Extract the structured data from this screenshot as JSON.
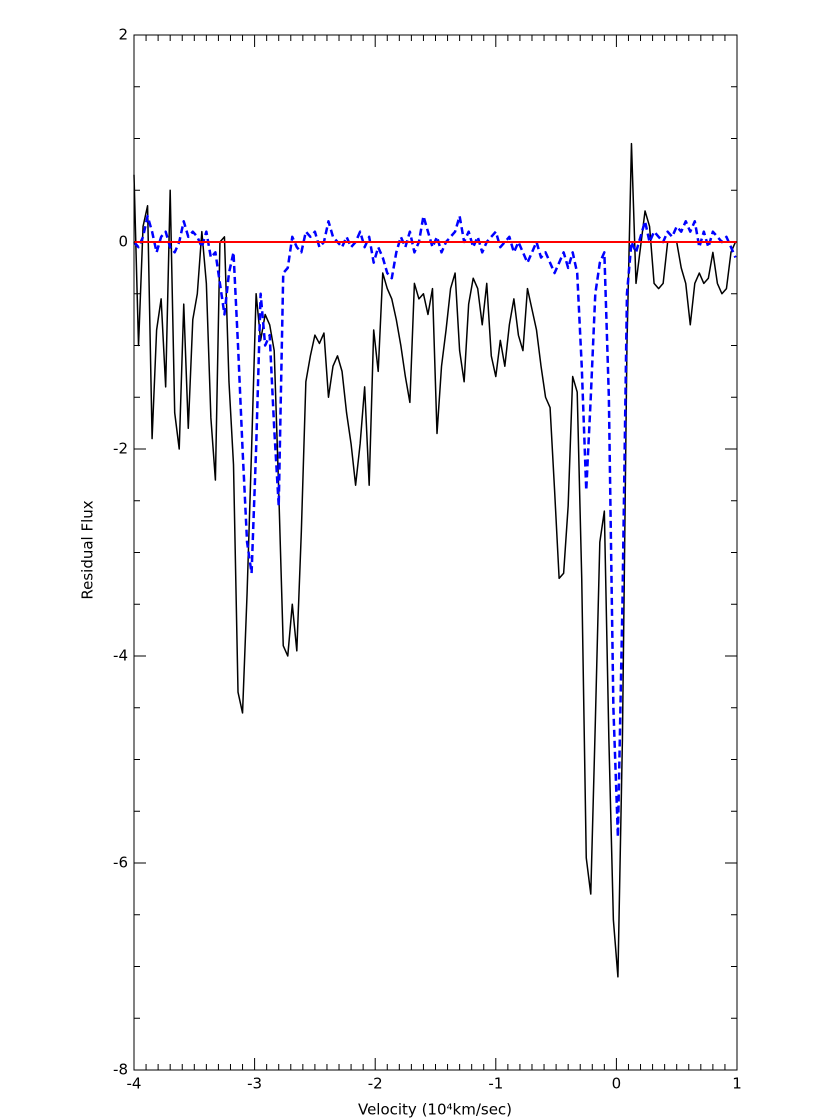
{
  "chart_data": {
    "type": "line",
    "xlabel": "Velocity (10⁴km/sec)",
    "ylabel": "Residual Flux",
    "xlim": [
      -4,
      1
    ],
    "ylim": [
      -8,
      2
    ],
    "xticks": [
      -4,
      -3,
      -2,
      -1,
      0,
      1
    ],
    "yticks": [
      -8,
      -6,
      -4,
      -2,
      0,
      2
    ],
    "x_minor_divisions": 10,
    "y_minor_divisions": 4,
    "series": [
      {
        "color": "#000000",
        "style": "solid",
        "x": [
          -4,
          -3.9625,
          -3.925,
          -3.8875,
          -3.85,
          -3.8125,
          -3.775,
          -3.7375,
          -3.7,
          -3.6625,
          -3.625,
          -3.5875,
          -3.55,
          -3.5125,
          -3.475,
          -3.4375,
          -3.4,
          -3.3625,
          -3.325,
          -3.2875,
          -3.25,
          -3.2125,
          -3.175,
          -3.1375,
          -3.1,
          -3.0625,
          -3.025,
          -2.9875,
          -2.95,
          -2.9125,
          -2.875,
          -2.8375,
          -2.8,
          -2.7625,
          -2.725,
          -2.6875,
          -2.65,
          -2.6125,
          -2.575,
          -2.5375,
          -2.5,
          -2.4625,
          -2.425,
          -2.3875,
          -2.35,
          -2.3125,
          -2.275,
          -2.2375,
          -2.2,
          -2.1625,
          -2.125,
          -2.0875,
          -2.05,
          -2.0125,
          -1.975,
          -1.9375,
          -1.9,
          -1.8625,
          -1.825,
          -1.7875,
          -1.75,
          -1.7125,
          -1.675,
          -1.6375,
          -1.6,
          -1.5625,
          -1.525,
          -1.4875,
          -1.45,
          -1.4125,
          -1.375,
          -1.3375,
          -1.3,
          -1.2625,
          -1.225,
          -1.1875,
          -1.15,
          -1.1125,
          -1.075,
          -1.0375,
          -1,
          -0.9625,
          -0.925,
          -0.8875,
          -0.85,
          -0.8125,
          -0.775,
          -0.7375,
          -0.7,
          -0.6625,
          -0.625,
          -0.5875,
          -0.55,
          -0.5125,
          -0.475,
          -0.4375,
          -0.4,
          -0.3625,
          -0.325,
          -0.2875,
          -0.25,
          -0.2125,
          -0.175,
          -0.1375,
          -0.1,
          -0.0625,
          -0.025,
          0.0125,
          0.05,
          0.0875,
          0.125,
          0.1625,
          0.2,
          0.2375,
          0.275,
          0.3125,
          0.35,
          0.3875,
          0.425,
          0.4625,
          0.5,
          0.5375,
          0.575,
          0.6125,
          0.65,
          0.6875,
          0.725,
          0.7625,
          0.8,
          0.8375,
          0.875,
          0.9125,
          0.95,
          0.9875
        ],
        "values": [
          0.65,
          -1.0,
          0.15,
          0.35,
          -1.9,
          -0.85,
          -0.55,
          -1.4,
          0.5,
          -1.65,
          -2.0,
          -0.6,
          -1.8,
          -0.75,
          -0.5,
          0.1,
          -0.4,
          -1.7,
          -2.3,
          0,
          0.05,
          -1.35,
          -2.15,
          -4.35,
          -4.55,
          -3.4,
          -2.0,
          -0.5,
          -0.95,
          -0.7,
          -0.8,
          -1.05,
          -2.4,
          -3.9,
          -4.0,
          -3.5,
          -3.95,
          -2.8,
          -1.35,
          -1.1,
          -0.9,
          -0.98,
          -0.88,
          -1.5,
          -1.2,
          -1.1,
          -1.25,
          -1.65,
          -1.95,
          -2.35,
          -1.95,
          -1.4,
          -2.35,
          -0.85,
          -1.25,
          -0.3,
          -0.45,
          -0.55,
          -0.75,
          -1.0,
          -1.3,
          -1.55,
          -0.4,
          -0.55,
          -0.5,
          -0.7,
          -0.45,
          -1.85,
          -1.2,
          -0.85,
          -0.45,
          -0.3,
          -1.05,
          -1.35,
          -0.6,
          -0.35,
          -0.45,
          -0.8,
          -0.4,
          -1.1,
          -1.3,
          -0.95,
          -1.2,
          -0.8,
          -0.55,
          -0.9,
          -1.05,
          -0.45,
          -0.65,
          -0.85,
          -1.2,
          -1.5,
          -1.6,
          -2.4,
          -3.25,
          -3.2,
          -2.55,
          -1.3,
          -1.45,
          -3.25,
          -5.95,
          -6.3,
          -4.65,
          -2.9,
          -2.6,
          -4.8,
          -6.55,
          -7.1,
          -4.8,
          -1.0,
          0.95,
          -0.4,
          -0.05,
          0.3,
          0.15,
          -0.4,
          -0.45,
          -0.4,
          0,
          0,
          0,
          -0.25,
          -0.4,
          -0.8,
          -0.4,
          -0.3,
          -0.4,
          -0.35,
          -0.1,
          -0.4,
          -0.5,
          -0.45,
          -0.1,
          0
        ]
      },
      {
        "color": "#0000ff",
        "style": "dashed",
        "x": [
          -4,
          -3.9625,
          -3.925,
          -3.8875,
          -3.85,
          -3.8125,
          -3.775,
          -3.7375,
          -3.7,
          -3.6625,
          -3.625,
          -3.5875,
          -3.55,
          -3.5125,
          -3.475,
          -3.4375,
          -3.4,
          -3.3625,
          -3.325,
          -3.2875,
          -3.25,
          -3.2125,
          -3.175,
          -3.1375,
          -3.1,
          -3.0625,
          -3.025,
          -2.9875,
          -2.95,
          -2.9125,
          -2.875,
          -2.8375,
          -2.8,
          -2.7625,
          -2.725,
          -2.6875,
          -2.65,
          -2.6125,
          -2.575,
          -2.5375,
          -2.5,
          -2.4625,
          -2.425,
          -2.3875,
          -2.35,
          -2.3125,
          -2.275,
          -2.2375,
          -2.2,
          -2.1625,
          -2.125,
          -2.0875,
          -2.05,
          -2.0125,
          -1.975,
          -1.9375,
          -1.9,
          -1.8625,
          -1.825,
          -1.7875,
          -1.75,
          -1.7125,
          -1.675,
          -1.6375,
          -1.6,
          -1.5625,
          -1.525,
          -1.4875,
          -1.45,
          -1.4125,
          -1.375,
          -1.3375,
          -1.3,
          -1.2625,
          -1.225,
          -1.1875,
          -1.15,
          -1.1125,
          -1.075,
          -1.0375,
          -1,
          -0.9625,
          -0.925,
          -0.8875,
          -0.85,
          -0.8125,
          -0.775,
          -0.7375,
          -0.7,
          -0.6625,
          -0.625,
          -0.5875,
          -0.55,
          -0.5125,
          -0.475,
          -0.4375,
          -0.4,
          -0.3625,
          -0.325,
          -0.2875,
          -0.25,
          -0.2125,
          -0.175,
          -0.1375,
          -0.1,
          -0.0625,
          -0.025,
          0.0125,
          0.05,
          0.0875,
          0.125,
          0.1625,
          0.2,
          0.2375,
          0.275,
          0.3125,
          0.35,
          0.3875,
          0.425,
          0.4625,
          0.5,
          0.5375,
          0.575,
          0.6125,
          0.65,
          0.6875,
          0.725,
          0.7625,
          0.8,
          0.8375,
          0.875,
          0.9125,
          0.95,
          0.9875
        ],
        "values": [
          0.0,
          -0.05,
          0.05,
          0.25,
          0.1,
          -0.1,
          0.05,
          0.1,
          -0.05,
          -0.1,
          0.0,
          0.2,
          0.05,
          0.1,
          0.05,
          -0.05,
          0.1,
          -0.15,
          -0.1,
          -0.4,
          -0.7,
          -0.3,
          -0.1,
          -1.0,
          -2.0,
          -2.9,
          -3.2,
          -2.0,
          -0.5,
          -1.0,
          -0.9,
          -1.8,
          -2.55,
          -0.3,
          -0.25,
          0.05,
          -0.05,
          -0.1,
          0.1,
          0.05,
          0.1,
          -0.05,
          0.0,
          0.2,
          0.05,
          0.0,
          -0.05,
          0.05,
          -0.05,
          0.0,
          0.1,
          -0.05,
          0.05,
          -0.2,
          -0.05,
          -0.15,
          -0.3,
          -0.35,
          -0.1,
          0.05,
          -0.05,
          0.1,
          -0.1,
          0.0,
          0.25,
          0.1,
          -0.05,
          0.05,
          -0.1,
          0.0,
          0.05,
          0.1,
          0.25,
          0.0,
          0.1,
          -0.05,
          0.05,
          -0.1,
          0.0,
          0.05,
          0.1,
          -0.05,
          0.0,
          0.05,
          -0.1,
          0.0,
          -0.1,
          -0.2,
          -0.1,
          0.0,
          -0.15,
          -0.1,
          -0.2,
          -0.3,
          -0.2,
          -0.1,
          -0.25,
          -0.1,
          -0.3,
          -1.2,
          -2.4,
          -1.5,
          -0.5,
          -0.2,
          -0.1,
          -1.5,
          -4.5,
          -5.75,
          -3.5,
          -0.5,
          0.0,
          -0.1,
          0.05,
          0.2,
          0.0,
          0.1,
          0.05,
          0.0,
          0.1,
          0.05,
          0.15,
          0.1,
          0.2,
          0.1,
          0.2,
          -0.05,
          0.1,
          -0.05,
          0.1,
          0.05,
          0.0,
          0.05,
          -0.05,
          -0.15
        ]
      },
      {
        "color": "#ff0000",
        "style": "solid",
        "x": [
          -4,
          1
        ],
        "values": [
          0,
          0
        ]
      }
    ]
  }
}
